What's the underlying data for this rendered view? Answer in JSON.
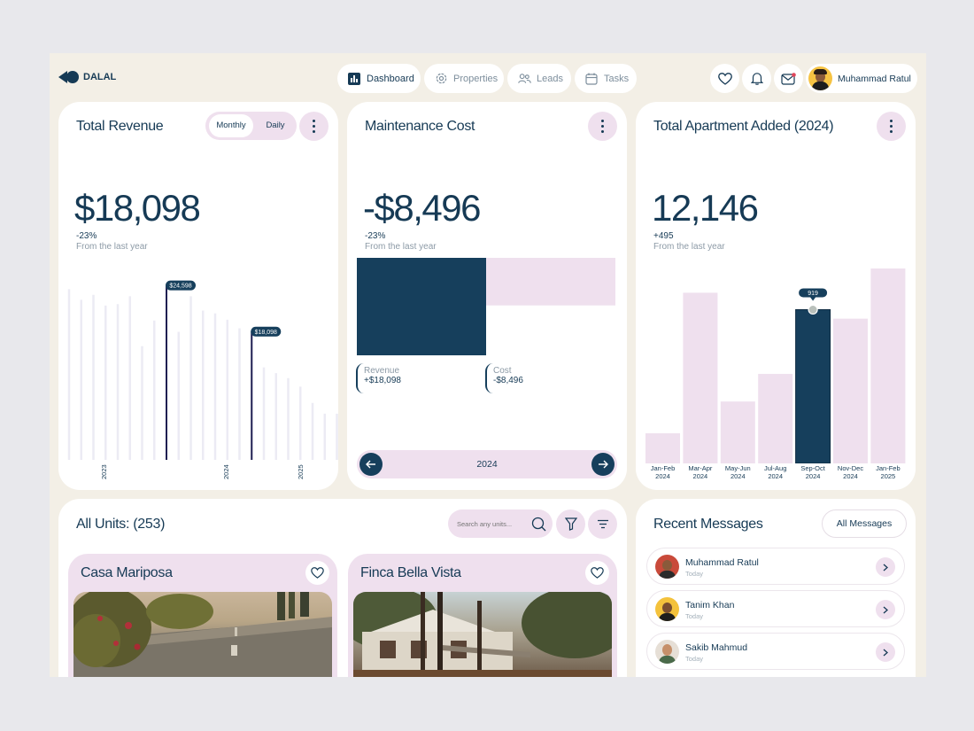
{
  "brand": {
    "name": "DALAL"
  },
  "nav": [
    {
      "label": "Dashboard",
      "icon": "chart-icon",
      "active": true
    },
    {
      "label": "Properties",
      "icon": "gear-icon",
      "active": false
    },
    {
      "label": "Leads",
      "icon": "users-icon",
      "active": false
    },
    {
      "label": "Tasks",
      "icon": "calendar-icon",
      "active": false
    }
  ],
  "user": {
    "name": "Muhammad Ratul"
  },
  "revenue": {
    "title": "Total Revenue",
    "toggle": [
      "Monthly",
      "Daily"
    ],
    "toggle_selected": "Monthly",
    "value": "$18,098",
    "delta": "-23%",
    "sub": "From the last year",
    "year_labels": [
      "2023",
      "2024",
      "2025"
    ]
  },
  "maintenance": {
    "title": "Maintenance Cost",
    "value": "-$8,496",
    "delta": "-23%",
    "sub": "From the last year",
    "revenue_label": "Revenue",
    "revenue_value": "+$18,098",
    "cost_label": "Cost",
    "cost_value": "-$8,496",
    "year": "2024"
  },
  "apartments": {
    "title": "Total Apartment Added (2024)",
    "value": "12,146",
    "delta": "+495",
    "sub": "From the last year"
  },
  "units": {
    "title": "All Units: (253)",
    "search_placeholder": "Search any units...",
    "cards": [
      {
        "name": "Casa Mariposa"
      },
      {
        "name": "Finca Bella Vista"
      }
    ]
  },
  "messages": {
    "title": "Recent Messages",
    "all_button": "All Messages",
    "items": [
      {
        "name": "Muhammad Ratul",
        "time": "Today"
      },
      {
        "name": "Tanim Khan",
        "time": "Today"
      },
      {
        "name": "Sakib Mahmud",
        "time": "Today"
      }
    ]
  },
  "chart_data": [
    {
      "type": "bar",
      "title": "Total Revenue",
      "x": [
        "2023",
        "2023",
        "2023",
        "2023",
        "2023",
        "2023",
        "2023",
        "2023",
        "2023",
        "2023",
        "2024",
        "2024",
        "2024",
        "2024",
        "2024",
        "2024",
        "2024",
        "2024",
        "2025",
        "2025",
        "2025",
        "2025",
        "2025",
        "2025"
      ],
      "values": [
        24000,
        22500,
        23200,
        21700,
        21900,
        23000,
        16000,
        19600,
        24598,
        18000,
        23000,
        21000,
        20600,
        19700,
        18500,
        18098,
        13000,
        12200,
        11500,
        10300,
        8000,
        6500,
        6500,
        6500
      ],
      "highlighted": [
        {
          "label": "$24,598",
          "value": 24598
        },
        {
          "label": "$18,098",
          "value": 18098
        }
      ]
    },
    {
      "type": "bar",
      "title": "Maintenance Cost",
      "categories": [
        "Revenue",
        "Cost"
      ],
      "values": [
        18098,
        8496
      ]
    },
    {
      "type": "bar",
      "title": "Total Apartment Added (2024)",
      "categories": [
        "Jan-Feb 2024",
        "Mar-Apr 2024",
        "May-Jun 2024",
        "Jul-Aug 2024",
        "Sep-Oct 2024",
        "Nov-Dec 2024",
        "Jan-Feb 2025"
      ],
      "values": [
        180,
        1020,
        370,
        535,
        919,
        865,
        1165
      ],
      "highlighted": {
        "category": "Sep-Oct 2024",
        "label": "919"
      },
      "colors": {
        "bar": "#efe0ee",
        "highlight": "#163f5c"
      }
    }
  ]
}
